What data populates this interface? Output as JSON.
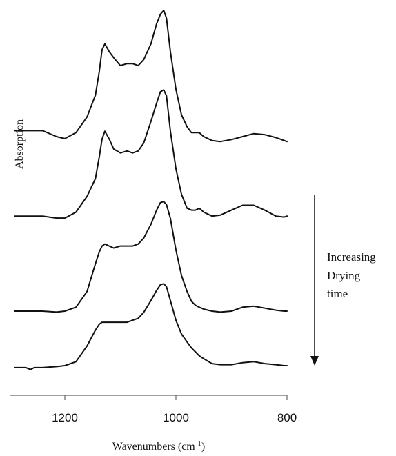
{
  "chart_data": {
    "type": "line",
    "xlabel": "Wavenumbers (cm",
    "xlabel_sup": "-1",
    "xlabel_close": ")",
    "ylabel": "Absorption",
    "xlim": [
      1300,
      800
    ],
    "x_reversed": true,
    "xticks": [
      {
        "value": 1200,
        "label": "1200"
      },
      {
        "value": 1000,
        "label": "1000"
      },
      {
        "value": 800,
        "label": "800"
      }
    ],
    "annotation": {
      "lines": [
        "Increasing",
        "Drying",
        "time"
      ],
      "arrow_direction": "down"
    },
    "series_units": "relative absorption (0–1), y-axis unlabeled",
    "series": [
      {
        "points": [
          [
            1290,
            0.46
          ],
          [
            1240,
            0.46
          ],
          [
            1215,
            0.43
          ],
          [
            1200,
            0.42
          ],
          [
            1180,
            0.45
          ],
          [
            1160,
            0.53
          ],
          [
            1145,
            0.64
          ],
          [
            1138,
            0.76
          ],
          [
            1133,
            0.87
          ],
          [
            1128,
            0.9
          ],
          [
            1120,
            0.86
          ],
          [
            1112,
            0.83
          ],
          [
            1100,
            0.79
          ],
          [
            1088,
            0.8
          ],
          [
            1078,
            0.8
          ],
          [
            1068,
            0.79
          ],
          [
            1058,
            0.82
          ],
          [
            1045,
            0.9
          ],
          [
            1035,
            1.0
          ],
          [
            1028,
            1.05
          ],
          [
            1022,
            1.07
          ],
          [
            1017,
            1.03
          ],
          [
            1010,
            0.86
          ],
          [
            1000,
            0.67
          ],
          [
            990,
            0.54
          ],
          [
            980,
            0.48
          ],
          [
            972,
            0.45
          ],
          [
            965,
            0.45
          ],
          [
            958,
            0.45
          ],
          [
            950,
            0.43
          ],
          [
            935,
            0.41
          ],
          [
            920,
            0.405
          ],
          [
            900,
            0.415
          ],
          [
            880,
            0.43
          ],
          [
            860,
            0.445
          ],
          [
            840,
            0.44
          ],
          [
            820,
            0.425
          ],
          [
            805,
            0.41
          ],
          [
            800,
            0.405
          ]
        ]
      },
      {
        "points": [
          [
            1290,
            0.23
          ],
          [
            1240,
            0.23
          ],
          [
            1215,
            0.22
          ],
          [
            1200,
            0.22
          ],
          [
            1180,
            0.25
          ],
          [
            1160,
            0.33
          ],
          [
            1145,
            0.42
          ],
          [
            1138,
            0.53
          ],
          [
            1133,
            0.62
          ],
          [
            1128,
            0.66
          ],
          [
            1120,
            0.62
          ],
          [
            1112,
            0.57
          ],
          [
            1100,
            0.55
          ],
          [
            1088,
            0.56
          ],
          [
            1078,
            0.55
          ],
          [
            1068,
            0.56
          ],
          [
            1058,
            0.6
          ],
          [
            1045,
            0.71
          ],
          [
            1035,
            0.8
          ],
          [
            1028,
            0.86
          ],
          [
            1022,
            0.87
          ],
          [
            1017,
            0.84
          ],
          [
            1010,
            0.66
          ],
          [
            1000,
            0.47
          ],
          [
            990,
            0.34
          ],
          [
            980,
            0.27
          ],
          [
            972,
            0.26
          ],
          [
            965,
            0.26
          ],
          [
            958,
            0.27
          ],
          [
            950,
            0.25
          ],
          [
            935,
            0.23
          ],
          [
            920,
            0.235
          ],
          [
            900,
            0.26
          ],
          [
            880,
            0.285
          ],
          [
            860,
            0.285
          ],
          [
            840,
            0.26
          ],
          [
            820,
            0.23
          ],
          [
            805,
            0.225
          ],
          [
            800,
            0.23
          ]
        ]
      },
      {
        "points": [
          [
            1290,
            0.07
          ],
          [
            1240,
            0.07
          ],
          [
            1215,
            0.065
          ],
          [
            1200,
            0.07
          ],
          [
            1180,
            0.09
          ],
          [
            1160,
            0.17
          ],
          [
            1145,
            0.31
          ],
          [
            1138,
            0.37
          ],
          [
            1133,
            0.4
          ],
          [
            1128,
            0.41
          ],
          [
            1120,
            0.4
          ],
          [
            1112,
            0.39
          ],
          [
            1100,
            0.4
          ],
          [
            1088,
            0.4
          ],
          [
            1078,
            0.4
          ],
          [
            1068,
            0.41
          ],
          [
            1058,
            0.44
          ],
          [
            1045,
            0.51
          ],
          [
            1035,
            0.58
          ],
          [
            1028,
            0.62
          ],
          [
            1022,
            0.625
          ],
          [
            1017,
            0.61
          ],
          [
            1010,
            0.54
          ],
          [
            1000,
            0.38
          ],
          [
            990,
            0.25
          ],
          [
            980,
            0.17
          ],
          [
            972,
            0.12
          ],
          [
            965,
            0.1
          ],
          [
            958,
            0.09
          ],
          [
            950,
            0.08
          ],
          [
            935,
            0.07
          ],
          [
            920,
            0.065
          ],
          [
            900,
            0.07
          ],
          [
            880,
            0.09
          ],
          [
            860,
            0.095
          ],
          [
            840,
            0.085
          ],
          [
            820,
            0.075
          ],
          [
            805,
            0.07
          ],
          [
            800,
            0.07
          ]
        ]
      },
      {
        "points": [
          [
            1290,
            -0.01
          ],
          [
            1270,
            -0.01
          ],
          [
            1262,
            -0.02
          ],
          [
            1255,
            -0.01
          ],
          [
            1240,
            -0.01
          ],
          [
            1215,
            -0.005
          ],
          [
            1200,
            0.0
          ],
          [
            1180,
            0.02
          ],
          [
            1160,
            0.1
          ],
          [
            1145,
            0.18
          ],
          [
            1138,
            0.21
          ],
          [
            1133,
            0.22
          ],
          [
            1128,
            0.22
          ],
          [
            1115,
            0.22
          ],
          [
            1100,
            0.22
          ],
          [
            1088,
            0.22
          ],
          [
            1078,
            0.23
          ],
          [
            1068,
            0.24
          ],
          [
            1058,
            0.27
          ],
          [
            1045,
            0.33
          ],
          [
            1035,
            0.38
          ],
          [
            1028,
            0.41
          ],
          [
            1022,
            0.415
          ],
          [
            1017,
            0.4
          ],
          [
            1010,
            0.33
          ],
          [
            1000,
            0.23
          ],
          [
            990,
            0.16
          ],
          [
            980,
            0.12
          ],
          [
            972,
            0.09
          ],
          [
            965,
            0.07
          ],
          [
            958,
            0.05
          ],
          [
            950,
            0.035
          ],
          [
            935,
            0.01
          ],
          [
            920,
            0.005
          ],
          [
            900,
            0.005
          ],
          [
            880,
            0.015
          ],
          [
            860,
            0.02
          ],
          [
            840,
            0.01
          ],
          [
            820,
            0.005
          ],
          [
            805,
            0.0
          ],
          [
            800,
            0.0
          ]
        ]
      }
    ]
  }
}
